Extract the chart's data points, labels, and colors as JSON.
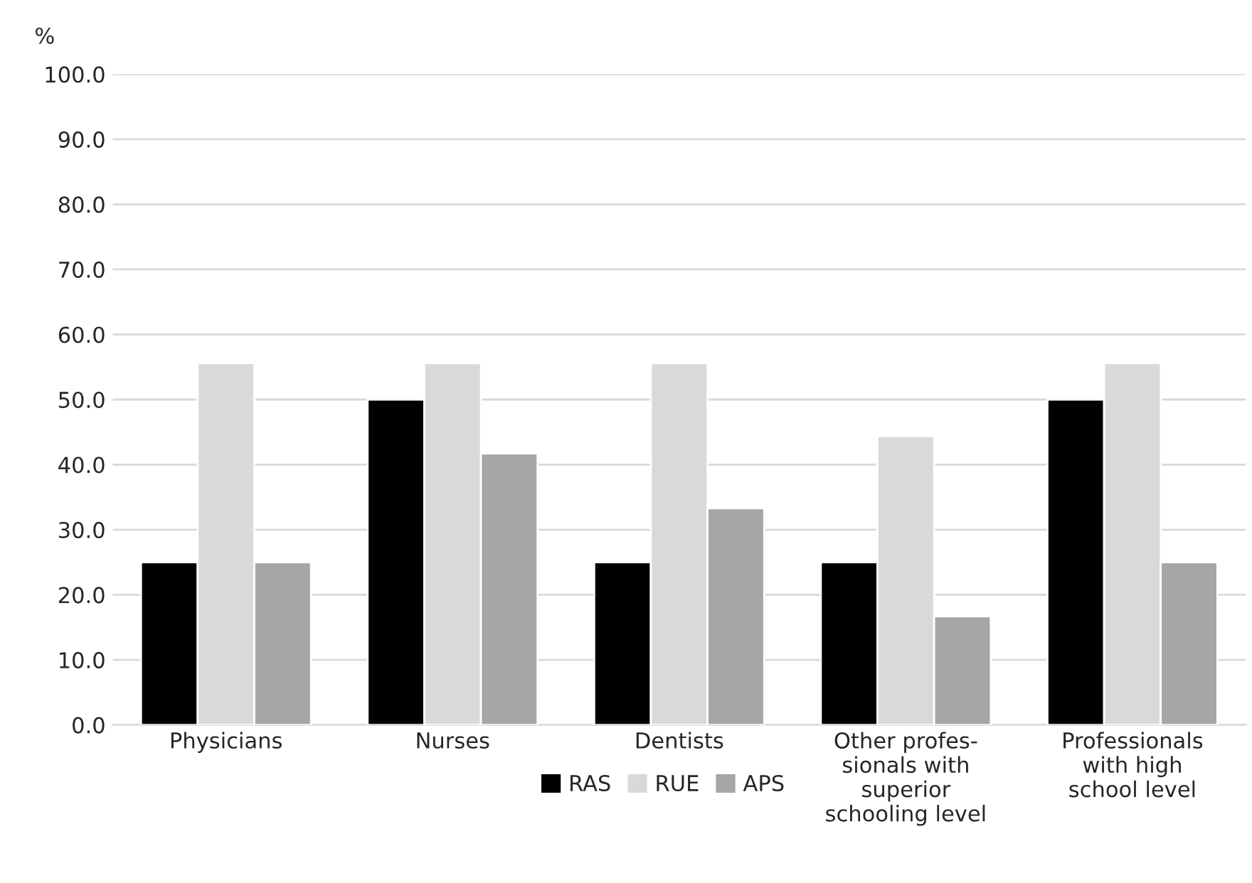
{
  "chart_data": {
    "type": "bar",
    "ylabel": "%",
    "categories": [
      "Physicians",
      "Nurses",
      "Dentists",
      "Other profes-\nsionals with\nsuperior\nschooling level",
      "Professionals\nwith high\nschool level"
    ],
    "series": [
      {
        "name": "RAS",
        "color": "#000000",
        "values": [
          25.0,
          50.0,
          25.0,
          25.0,
          50.0
        ]
      },
      {
        "name": "RUE",
        "color": "#d9d9d9",
        "values": [
          55.6,
          55.6,
          55.6,
          44.4,
          55.6
        ]
      },
      {
        "name": "APS",
        "color": "#a6a6a6",
        "values": [
          25.0,
          41.7,
          33.3,
          16.7,
          25.0
        ]
      }
    ],
    "ylim": [
      0,
      100
    ],
    "yticks": [
      {
        "value": 0,
        "label": "0.0"
      },
      {
        "value": 10,
        "label": "10.0"
      },
      {
        "value": 20,
        "label": "20.0"
      },
      {
        "value": 30,
        "label": "30.0"
      },
      {
        "value": 40,
        "label": "40.0"
      },
      {
        "value": 50,
        "label": "50.0"
      },
      {
        "value": 60,
        "label": "60.0"
      },
      {
        "value": 70,
        "label": "70.0"
      },
      {
        "value": 80,
        "label": "80.0"
      },
      {
        "value": 90,
        "label": "90.0"
      },
      {
        "value": 100,
        "label": "100.0"
      }
    ],
    "grid": "y",
    "legend": "bottom"
  }
}
